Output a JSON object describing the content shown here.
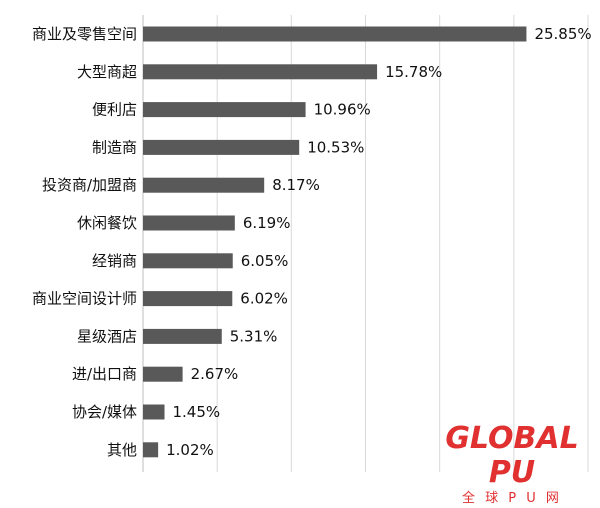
{
  "chart_data": {
    "type": "bar",
    "orientation": "horizontal",
    "title": "",
    "xlabel": "",
    "ylabel": "",
    "categories": [
      "商业及零售空间",
      "大型商超",
      "便利店",
      "制造商",
      "投资商/加盟商",
      "休闲餐饮",
      "经销商",
      "商业空间设计师",
      "星级酒店",
      "进/出口商",
      "协会/媒体",
      "其他"
    ],
    "values": [
      25.85,
      15.78,
      10.96,
      10.53,
      8.17,
      6.19,
      6.05,
      6.02,
      5.31,
      2.67,
      1.45,
      1.02
    ],
    "value_labels": [
      "25.85%",
      "15.78%",
      "10.96%",
      "10.53%",
      "8.17%",
      "6.19%",
      "6.05%",
      "6.02%",
      "5.31%",
      "2.67%",
      "1.45%",
      "1.02%"
    ],
    "unit": "%",
    "xlim": [
      0,
      30
    ],
    "grid": true,
    "legend": "none",
    "bar_color": "#595959"
  },
  "logo": {
    "brand": "GLOBAL PU",
    "sub": "全 球 P U 网"
  },
  "colors": {
    "logo": "#e03030"
  }
}
